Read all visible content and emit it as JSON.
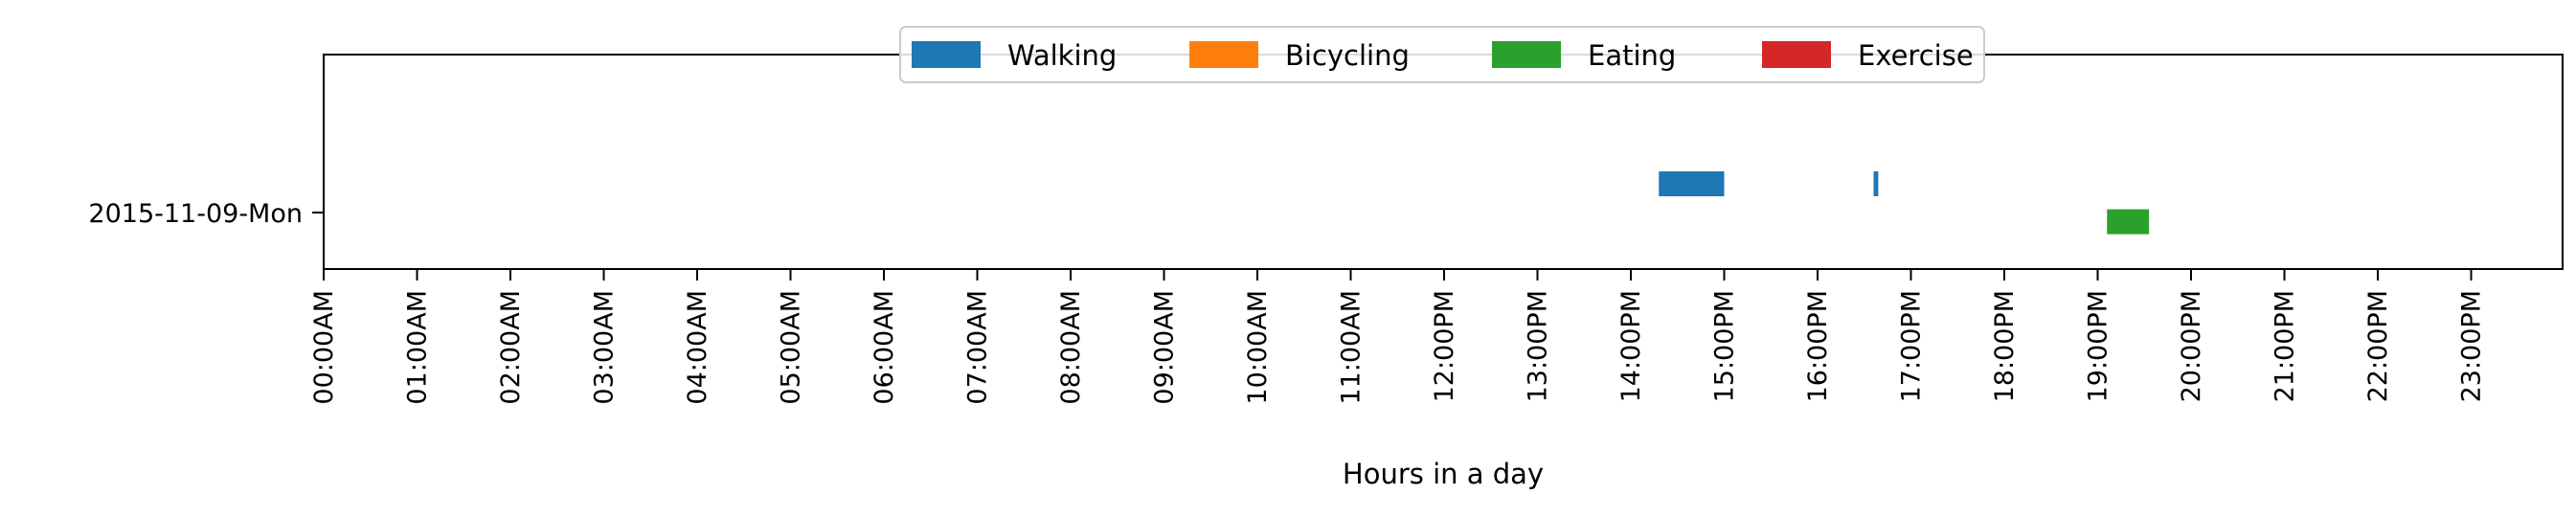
{
  "chart_data": {
    "type": "bar",
    "orientation": "horizontal-timeline",
    "title": "",
    "xlabel": "Hours in a day",
    "ylabel": "",
    "xlim": [
      0,
      24
    ],
    "x_ticks": [
      "00:00AM",
      "01:00AM",
      "02:00AM",
      "03:00AM",
      "04:00AM",
      "05:00AM",
      "06:00AM",
      "07:00AM",
      "08:00AM",
      "09:00AM",
      "10:00AM",
      "11:00AM",
      "12:00PM",
      "13:00PM",
      "14:00PM",
      "15:00PM",
      "16:00PM",
      "17:00PM",
      "18:00PM",
      "19:00PM",
      "20:00PM",
      "21:00PM",
      "22:00PM",
      "23:00PM"
    ],
    "categories": [
      "2015-11-09-Mon"
    ],
    "grid": false,
    "legend_placement": "top-center",
    "series": [
      {
        "name": "Walking",
        "color": "#1f77b4",
        "offset": -0.25,
        "segments": [
          {
            "category": "2015-11-09-Mon",
            "start": 14.3,
            "end": 15.0
          },
          {
            "category": "2015-11-09-Mon",
            "start": 16.6,
            "end": 16.65
          }
        ]
      },
      {
        "name": "Bicycling",
        "color": "#ff7f0e",
        "offset": -0.08,
        "segments": []
      },
      {
        "name": "Eating",
        "color": "#2ca02c",
        "offset": 0.08,
        "segments": [
          {
            "category": "2015-11-09-Mon",
            "start": 19.1,
            "end": 19.55
          }
        ]
      },
      {
        "name": "Exercise",
        "color": "#d62728",
        "offset": 0.25,
        "segments": []
      }
    ]
  }
}
